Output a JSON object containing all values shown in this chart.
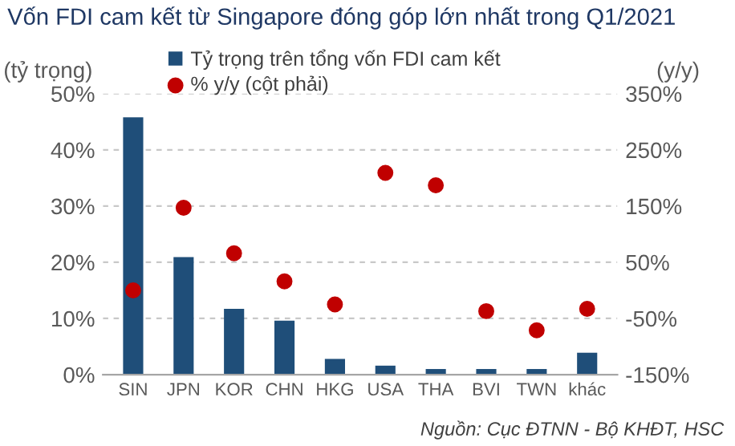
{
  "chart_data": {
    "type": "bar",
    "title": "Vốn FDI cam kết từ Singapore đóng góp lớn nhất trong Q1/2021",
    "ylabel": "(tỷ trọng)",
    "y2label": "(y/y)",
    "categories": [
      "SIN",
      "JPN",
      "KOR",
      "CHN",
      "HKG",
      "USA",
      "THA",
      "BVI",
      "TWN",
      "khác"
    ],
    "series": [
      {
        "name": "Tỷ trọng trên tổng vốn FDI cam kết",
        "color": "#1f4e79",
        "values": [
          45.8,
          20.9,
          11.7,
          9.6,
          2.8,
          1.6,
          1.0,
          1.0,
          1.0,
          3.9
        ]
      },
      {
        "name": "% y/y (cột phải)",
        "type": "scatter",
        "axis": "y2",
        "color": "#c00000",
        "values": [
          0,
          147,
          66,
          16,
          -25,
          209,
          187,
          -37,
          -71,
          -33
        ]
      }
    ],
    "ylim": [
      0,
      50
    ],
    "yticks": [
      {
        "value": 0,
        "label": "0%"
      },
      {
        "value": 10,
        "label": "10%"
      },
      {
        "value": 20,
        "label": "20%"
      },
      {
        "value": 30,
        "label": "30%"
      },
      {
        "value": 40,
        "label": "40%"
      },
      {
        "value": 50,
        "label": "50%"
      }
    ],
    "y2lim": [
      -150,
      350
    ],
    "y2ticks": [
      {
        "value": -150,
        "label": "-150%"
      },
      {
        "value": -50,
        "label": "-50%"
      },
      {
        "value": 50,
        "label": "50%"
      },
      {
        "value": 150,
        "label": "150%"
      },
      {
        "value": 250,
        "label": "250%"
      },
      {
        "value": 350,
        "label": "350%"
      }
    ],
    "grid": "y",
    "legend": "top",
    "marker": "circle",
    "annotations": [
      "Nguồn: Cục ĐTNN - Bộ KHĐT, HSC"
    ]
  }
}
